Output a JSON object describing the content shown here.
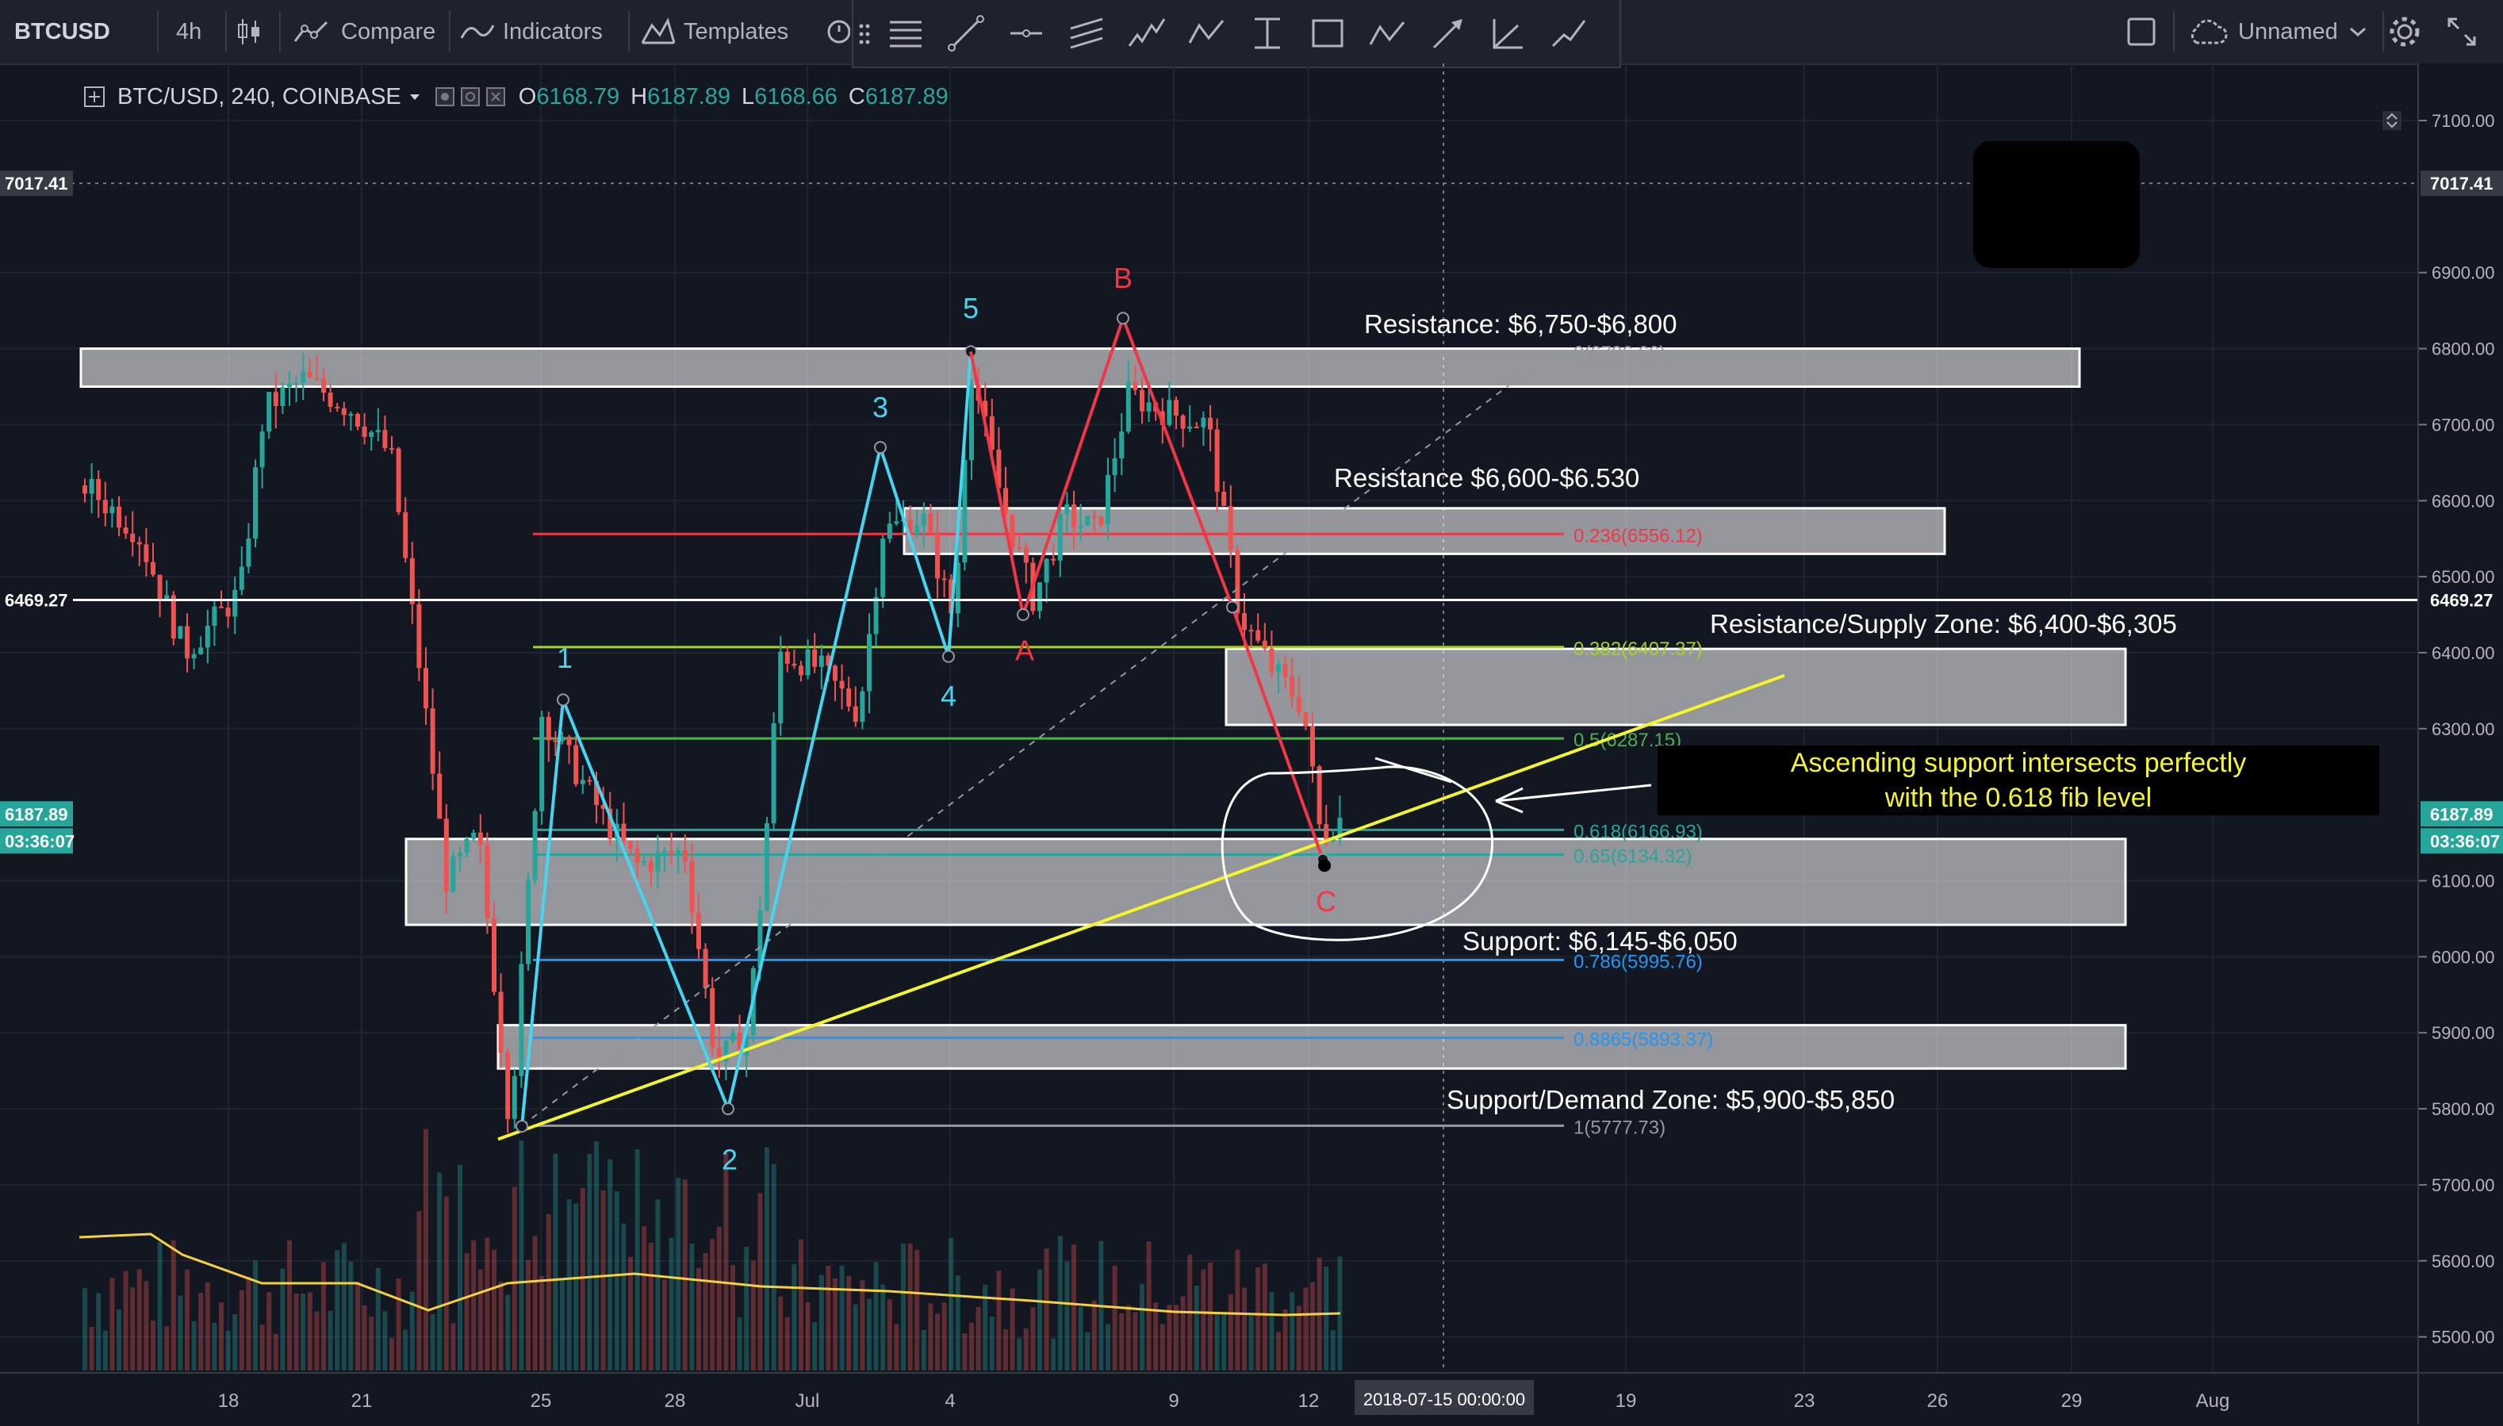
{
  "toolbar": {
    "symbol": "BTCUSD",
    "interval": "4h",
    "compare": "Compare",
    "indicators": "Indicators",
    "templates": "Templates",
    "layout_name": "Unnamed"
  },
  "legend": {
    "title": "BTC/USD, 240, COINBASE",
    "o_label": "O",
    "o_value": "6168.79",
    "h_label": "H",
    "h_value": "6187.89",
    "l_label": "L",
    "l_value": "6168.66",
    "c_label": "C",
    "c_value": "6187.89"
  },
  "price_axis": {
    "ticks": [
      "7100.00",
      "6900.00",
      "6800.00",
      "6700.00",
      "6600.00",
      "6500.00",
      "6400.00",
      "6300.00",
      "6100.00",
      "6000.00",
      "5900.00",
      "5800.00",
      "5700.00",
      "5600.00",
      "5500.00"
    ],
    "crosshair_price": "7017.41",
    "line_price": "6469.27",
    "last_price": "6187.89",
    "countdown": "03:36:07"
  },
  "time_axis": {
    "ticks": [
      "18",
      "21",
      "25",
      "28",
      "Jul",
      "4",
      "9",
      "12",
      "19",
      "23",
      "26",
      "29",
      "Aug"
    ],
    "crosshair_time": "2018-07-15 00:00:00"
  },
  "annotations": {
    "resistance_1": "Resistance: $6,750-$6,800",
    "resistance_2": "Resistance $6,600-$6.530",
    "resistance_3": "Resistance/Supply Zone: $6,400-$6,305",
    "support_1": "Support: $6,145-$6,050",
    "support_2": "Support/Demand Zone: $5,900-$5,850",
    "callout_line1": "Ascending support intersects perfectly",
    "callout_line2": "with the 0.618 fib level"
  },
  "fib_levels": [
    {
      "label": "0(6796.66)",
      "price": 6796.66,
      "color": "#9598a1"
    },
    {
      "label": "0.236(6556.12)",
      "price": 6556.12,
      "color": "#f23645"
    },
    {
      "label": "0.382(6407.37)",
      "price": 6407.37,
      "color": "#a5d12a"
    },
    {
      "label": "0.5(6287.15)",
      "price": 6287.15,
      "color": "#4caf50"
    },
    {
      "label": "0.618(6166.93)",
      "price": 6166.93,
      "color": "#26a69a"
    },
    {
      "label": "0.65(6134.32)",
      "price": 6134.32,
      "color": "#26a69a"
    },
    {
      "label": "0.786(5995.76)",
      "price": 5995.76,
      "color": "#2196f3"
    },
    {
      "label": "0.8865(5893.37)",
      "price": 5893.37,
      "color": "#2196f3"
    },
    {
      "label": "1(5777.73)",
      "price": 5777.73,
      "color": "#9598a1"
    }
  ],
  "wave_labels": {
    "impulse": [
      "1",
      "2",
      "3",
      "4",
      "5"
    ],
    "correction": [
      "A",
      "B",
      "C"
    ]
  },
  "colors": {
    "background": "#131722",
    "up": "#26a69a",
    "down": "#ef5350",
    "impulse": "#45d5f0",
    "correction": "#f23645",
    "trendline": "#f5f52b",
    "callout_text": "#f5f52b"
  }
}
